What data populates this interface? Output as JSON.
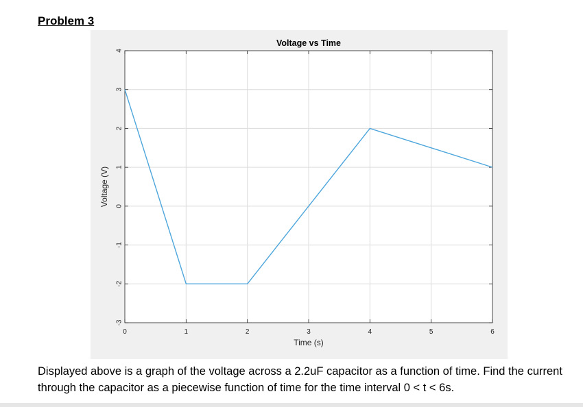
{
  "heading": "Problem 3",
  "chart_data": {
    "type": "line",
    "title": "Voltage vs Time",
    "xlabel": "Time (s)",
    "ylabel": "Voltage (V)",
    "xlim": [
      0,
      6
    ],
    "ylim": [
      -3,
      4
    ],
    "xticks": [
      0,
      1,
      2,
      3,
      4,
      5,
      6
    ],
    "yticks": [
      -3,
      -2,
      -1,
      0,
      1,
      2,
      3,
      4
    ],
    "grid": true,
    "series": [
      {
        "color": "#4DA6DC",
        "x": [
          0,
          1,
          2,
          4,
          6
        ],
        "y": [
          3,
          -2,
          -2,
          2,
          1
        ]
      }
    ]
  },
  "description": "Displayed above is a graph of the voltage across a 2.2uF capacitor as a function of time. Find the current through the capacitor as a piecewise function of time for the time interval 0 < t < 6s."
}
